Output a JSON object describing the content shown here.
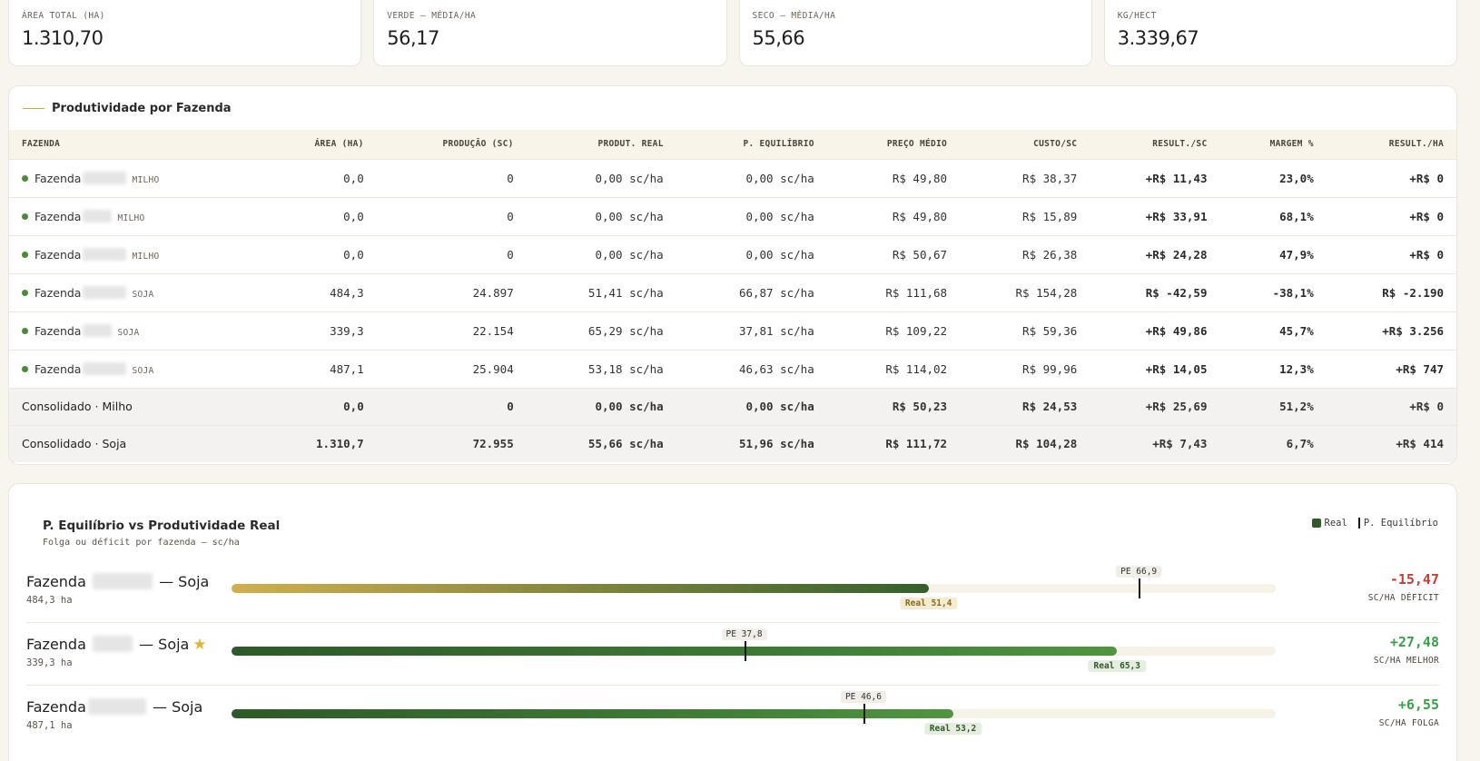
{
  "kpis": [
    {
      "label": "ÁREA TOTAL (HA)",
      "value": "1.310,70"
    },
    {
      "label": "VERDE — MÉDIA/HA",
      "value": "56,17"
    },
    {
      "label": "SECO — MÉDIA/HA",
      "value": "55,66"
    },
    {
      "label": "KG/HECT",
      "value": "3.339,67"
    }
  ],
  "table": {
    "title": "Produtividade por Fazenda",
    "headers": [
      "FAZENDA",
      "ÁREA (HA)",
      "PRODUÇÃO (SC)",
      "PRODUT. REAL",
      "P. EQUILÍBRIO",
      "PREÇO MÉDIO",
      "CUSTO/SC",
      "RESULT./SC",
      "MARGEM %",
      "RESULT./HA"
    ],
    "rows": [
      {
        "name": "Fazenda",
        "crop": "MILHO",
        "area": "0,0",
        "producao": "0",
        "real": "0,00 sc/ha",
        "equilibrio": "0,00 sc/ha",
        "preco": "R$ 49,80",
        "custo": "R$ 38,37",
        "result_sc": "+R$ 11,43",
        "margem": "23,0%",
        "result_ha": "+R$ 0"
      },
      {
        "name": "Fazenda",
        "crop": "MILHO",
        "area": "0,0",
        "producao": "0",
        "real": "0,00 sc/ha",
        "equilibrio": "0,00 sc/ha",
        "preco": "R$ 49,80",
        "custo": "R$ 15,89",
        "result_sc": "+R$ 33,91",
        "margem": "68,1%",
        "result_ha": "+R$ 0"
      },
      {
        "name": "Fazenda",
        "crop": "MILHO",
        "area": "0,0",
        "producao": "0",
        "real": "0,00 sc/ha",
        "equilibrio": "0,00 sc/ha",
        "preco": "R$ 50,67",
        "custo": "R$ 26,38",
        "result_sc": "+R$ 24,28",
        "margem": "47,9%",
        "result_ha": "+R$ 0"
      },
      {
        "name": "Fazenda",
        "crop": "SOJA",
        "area": "484,3",
        "producao": "24.897",
        "real": "51,41 sc/ha",
        "equilibrio": "66,87 sc/ha",
        "preco": "R$ 111,68",
        "custo": "R$ 154,28",
        "result_sc": "R$ -42,59",
        "margem": "-38,1%",
        "result_ha": "R$ -2.190"
      },
      {
        "name": "Fazenda",
        "crop": "SOJA",
        "area": "339,3",
        "producao": "22.154",
        "real": "65,29 sc/ha",
        "equilibrio": "37,81 sc/ha",
        "preco": "R$ 109,22",
        "custo": "R$ 59,36",
        "result_sc": "+R$ 49,86",
        "margem": "45,7%",
        "result_ha": "+R$ 3.256"
      },
      {
        "name": "Fazenda",
        "crop": "SOJA",
        "area": "487,1",
        "producao": "25.904",
        "real": "53,18 sc/ha",
        "equilibrio": "46,63 sc/ha",
        "preco": "R$ 114,02",
        "custo": "R$ 99,96",
        "result_sc": "+R$ 14,05",
        "margem": "12,3%",
        "result_ha": "+R$ 747"
      }
    ],
    "consolidated": [
      {
        "name": "Consolidado · Milho",
        "area": "0,0",
        "producao": "0",
        "real": "0,00 sc/ha",
        "equilibrio": "0,00 sc/ha",
        "preco": "R$ 50,23",
        "custo": "R$ 24,53",
        "result_sc": "+R$ 25,69",
        "margem": "51,2%",
        "result_ha": "+R$ 0"
      },
      {
        "name": "Consolidado · Soja",
        "area": "1.310,7",
        "producao": "72.955",
        "real": "55,66 sc/ha",
        "equilibrio": "51,96 sc/ha",
        "preco": "R$ 111,72",
        "custo": "R$ 104,28",
        "result_sc": "+R$ 7,43",
        "margem": "6,7%",
        "result_ha": "+R$ 414"
      }
    ]
  },
  "chart": {
    "title": "P. Equilíbrio vs Produtividade Real",
    "subtitle": "Folga ou déficit por fazenda — sc/ha",
    "legend_real": "Real",
    "legend_pe": "P. Equilíbrio",
    "accent_colors": {
      "deficit": "#c2403a",
      "good": "#3aa04a",
      "real": "#2e5a2a"
    }
  },
  "chart_data": {
    "type": "bar",
    "scale_max": 77.0,
    "series": [
      {
        "prefix": "Fazenda",
        "suffix": "— Soja",
        "ha": "484,3 ha",
        "real": 51.4,
        "pe": 66.9,
        "real_label": "Real 51,4",
        "pe_label": "PE 66,9",
        "delta": "-15,47",
        "delta_label": "SC/HA DÉFICIT",
        "status": "deficit",
        "starred": false
      },
      {
        "prefix": "Fazenda",
        "suffix": "— Soja",
        "ha": "339,3 ha",
        "real": 65.3,
        "pe": 37.8,
        "real_label": "Real 65,3",
        "pe_label": "PE 37,8",
        "delta": "+27,48",
        "delta_label": "SC/HA MELHOR",
        "status": "good",
        "starred": true
      },
      {
        "prefix": "Fazenda",
        "suffix": "— Soja",
        "ha": "487,1 ha",
        "real": 53.2,
        "pe": 46.6,
        "real_label": "Real 53,2",
        "pe_label": "PE 46,6",
        "delta": "+6,55",
        "delta_label": "SC/HA FOLGA",
        "status": "good",
        "starred": false
      }
    ]
  }
}
